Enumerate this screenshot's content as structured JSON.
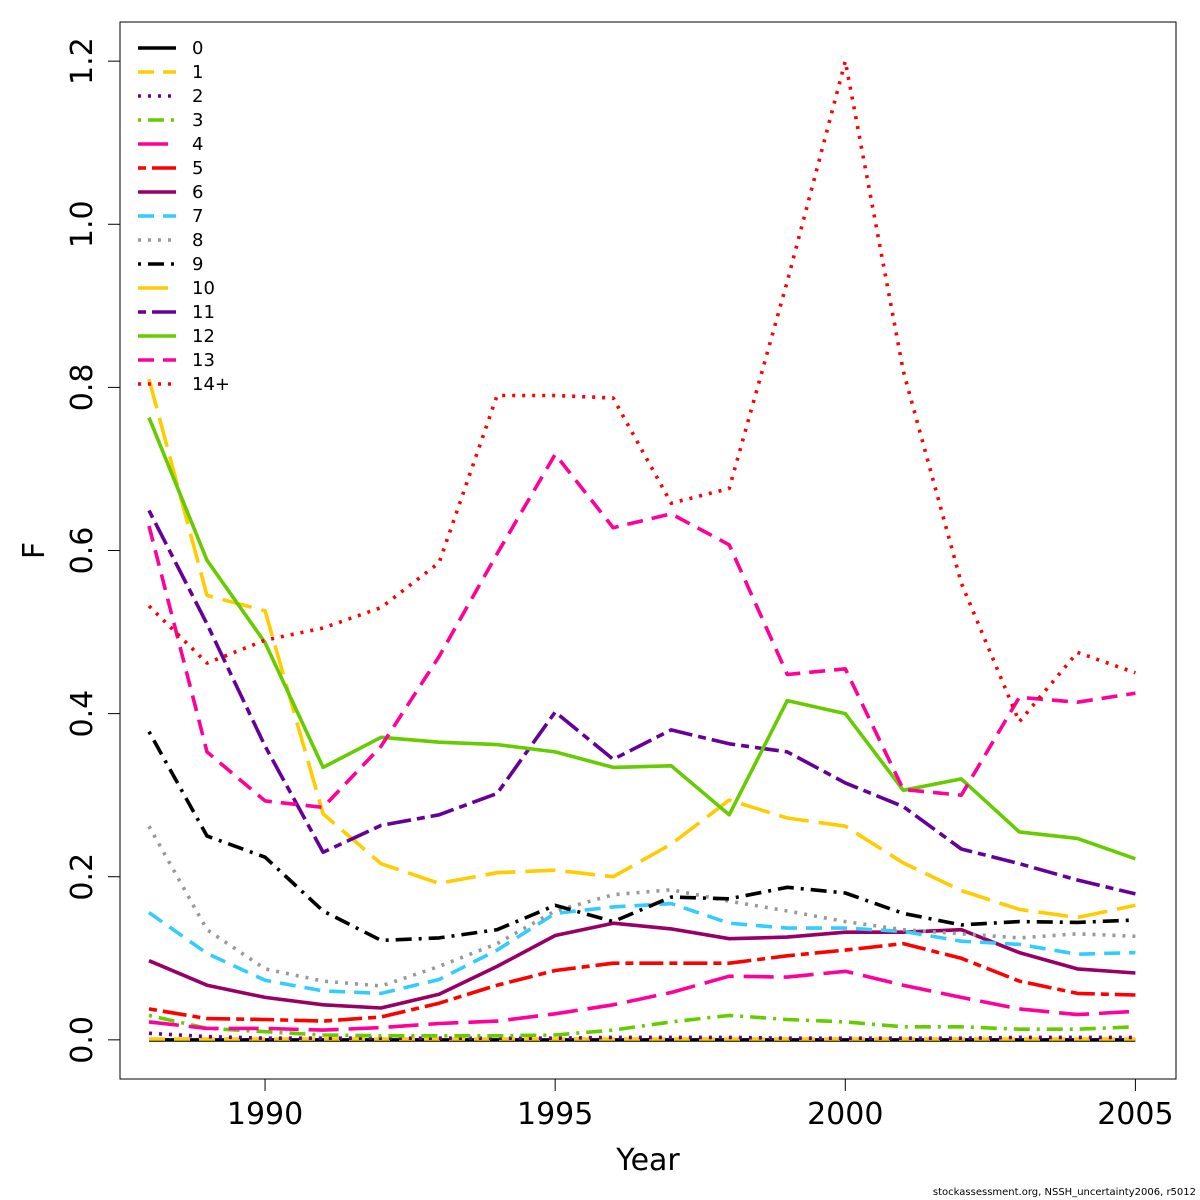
{
  "chart_data": {
    "type": "line",
    "title": "",
    "xlabel": "Year",
    "ylabel": "F",
    "xlim": [
      1987.5,
      2005.7
    ],
    "ylim": [
      -0.048,
      1.248
    ],
    "xticks": [
      1990,
      1995,
      2000,
      2005
    ],
    "yticks": [
      0.0,
      0.2,
      0.4,
      0.6,
      0.8,
      1.0,
      1.2
    ],
    "xtick_labels": [
      "1990",
      "1995",
      "2000",
      "2005"
    ],
    "ytick_labels": [
      "0.0",
      "0.2",
      "0.4",
      "0.6",
      "0.8",
      "1.0",
      "1.2"
    ],
    "legend_position": "top-left",
    "grid": false,
    "x": [
      1988,
      1989,
      1990,
      1991,
      1992,
      1993,
      1994,
      1995,
      1996,
      1997,
      1998,
      1999,
      2000,
      2001,
      2002,
      2003,
      2004,
      2005
    ],
    "series": [
      {
        "name": "0",
        "color": "#000000",
        "dash": "solid",
        "values": [
          0.0,
          0.0,
          0.0,
          0.0,
          0.0,
          0.0,
          0.0,
          0.0,
          0.0,
          0.0,
          0.0,
          0.0,
          0.0,
          0.0,
          0.0,
          0.0,
          0.0,
          0.0
        ]
      },
      {
        "name": "1",
        "color": "#ffcc00",
        "dash": "dashed",
        "values": [
          0.001,
          0.001,
          0.001,
          0.001,
          0.001,
          0.001,
          0.001,
          0.001,
          0.001,
          0.001,
          0.001,
          0.001,
          0.001,
          0.001,
          0.001,
          0.001,
          0.001,
          0.001
        ]
      },
      {
        "name": "2",
        "color": "#660099",
        "dash": "dotted",
        "values": [
          0.008,
          0.004,
          0.002,
          0.002,
          0.002,
          0.002,
          0.002,
          0.002,
          0.003,
          0.003,
          0.003,
          0.002,
          0.002,
          0.002,
          0.002,
          0.003,
          0.003,
          0.003
        ]
      },
      {
        "name": "3",
        "color": "#66cc00",
        "dash": "dotdash",
        "values": [
          0.03,
          0.014,
          0.01,
          0.006,
          0.005,
          0.005,
          0.005,
          0.006,
          0.012,
          0.022,
          0.03,
          0.025,
          0.022,
          0.016,
          0.016,
          0.013,
          0.013,
          0.016
        ]
      },
      {
        "name": "4",
        "color": "#ff0099",
        "dash": "longdash",
        "values": [
          0.022,
          0.014,
          0.014,
          0.012,
          0.015,
          0.02,
          0.023,
          0.032,
          0.043,
          0.058,
          0.078,
          0.077,
          0.084,
          0.067,
          0.052,
          0.038,
          0.031,
          0.035
        ]
      },
      {
        "name": "5",
        "color": "#ff0000",
        "dash": "twodash",
        "values": [
          0.038,
          0.026,
          0.025,
          0.023,
          0.028,
          0.045,
          0.067,
          0.085,
          0.094,
          0.094,
          0.094,
          0.103,
          0.11,
          0.118,
          0.1,
          0.072,
          0.057,
          0.055
        ]
      },
      {
        "name": "6",
        "color": "#990066",
        "dash": "solid",
        "values": [
          0.097,
          0.067,
          0.052,
          0.043,
          0.039,
          0.056,
          0.09,
          0.128,
          0.143,
          0.136,
          0.124,
          0.126,
          0.132,
          0.132,
          0.135,
          0.107,
          0.087,
          0.082
        ]
      },
      {
        "name": "7",
        "color": "#33ccff",
        "dash": "dashed",
        "values": [
          0.156,
          0.106,
          0.073,
          0.06,
          0.057,
          0.074,
          0.11,
          0.155,
          0.163,
          0.167,
          0.143,
          0.137,
          0.137,
          0.133,
          0.121,
          0.117,
          0.105,
          0.107
        ]
      },
      {
        "name": "8",
        "color": "#999999",
        "dash": "dotted",
        "values": [
          0.262,
          0.135,
          0.087,
          0.072,
          0.066,
          0.09,
          0.118,
          0.158,
          0.178,
          0.184,
          0.17,
          0.158,
          0.145,
          0.135,
          0.13,
          0.125,
          0.13,
          0.127
        ]
      },
      {
        "name": "9",
        "color": "#000000",
        "dash": "dotdash",
        "values": [
          0.378,
          0.25,
          0.224,
          0.158,
          0.122,
          0.125,
          0.135,
          0.165,
          0.145,
          0.175,
          0.173,
          0.187,
          0.18,
          0.155,
          0.141,
          0.145,
          0.144,
          0.147
        ]
      },
      {
        "name": "10",
        "color": "#ffcc00",
        "dash": "longdash",
        "values": [
          0.81,
          0.545,
          0.526,
          0.277,
          0.216,
          0.192,
          0.205,
          0.208,
          0.2,
          0.24,
          0.294,
          0.272,
          0.262,
          0.217,
          0.183,
          0.16,
          0.15,
          0.165
        ]
      },
      {
        "name": "11",
        "color": "#660099",
        "dash": "twodash",
        "values": [
          0.649,
          0.51,
          0.36,
          0.23,
          0.263,
          0.276,
          0.302,
          0.402,
          0.344,
          0.38,
          0.363,
          0.353,
          0.315,
          0.286,
          0.234,
          0.216,
          0.196,
          0.179
        ]
      },
      {
        "name": "12",
        "color": "#66cc00",
        "dash": "solid",
        "values": [
          0.763,
          0.588,
          0.487,
          0.334,
          0.371,
          0.365,
          0.362,
          0.353,
          0.334,
          0.336,
          0.276,
          0.416,
          0.4,
          0.306,
          0.32,
          0.255,
          0.247,
          0.222
        ]
      },
      {
        "name": "13",
        "color": "#ff0099",
        "dash": "dashed",
        "values": [
          0.63,
          0.353,
          0.293,
          0.285,
          0.36,
          0.47,
          0.596,
          0.718,
          0.628,
          0.645,
          0.607,
          0.448,
          0.455,
          0.307,
          0.3,
          0.42,
          0.414,
          0.425
        ]
      },
      {
        "name": "14+",
        "color": "#ff0000",
        "dash": "dotted",
        "values": [
          0.532,
          0.462,
          0.49,
          0.505,
          0.53,
          0.585,
          0.79,
          0.79,
          0.787,
          0.658,
          0.676,
          0.93,
          1.2,
          0.82,
          0.56,
          0.39,
          0.475,
          0.45
        ]
      }
    ]
  },
  "footer": {
    "caption": "stockassessment.org, NSSH_uncertainty2006, r5012"
  }
}
